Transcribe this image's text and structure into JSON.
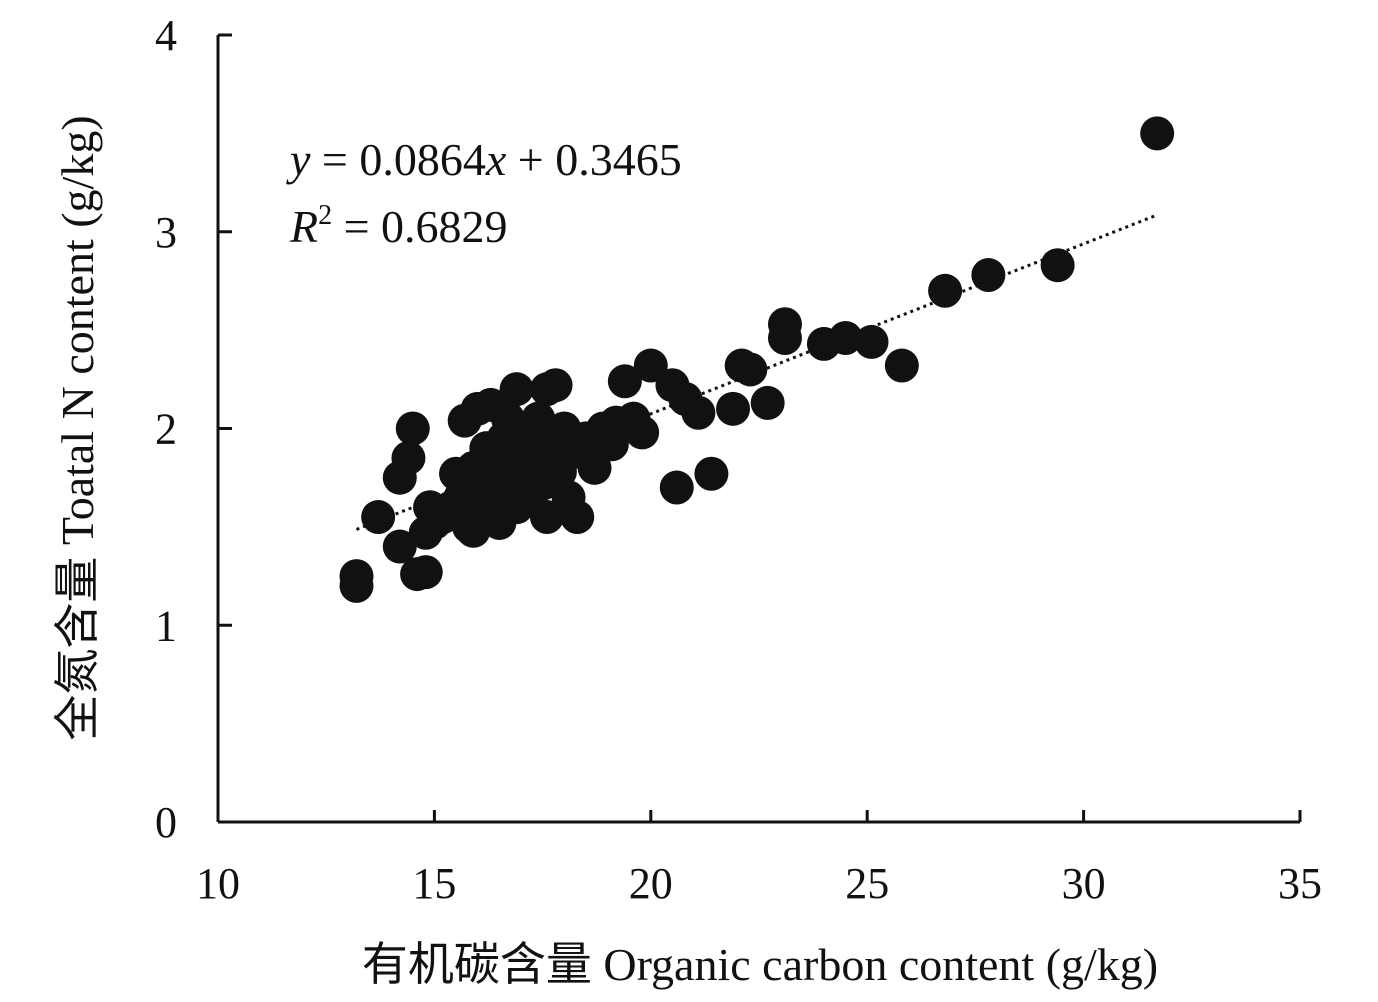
{
  "chart_data": {
    "type": "scatter",
    "xlabel": "有机碳含量 Organic carbon content (g/kg)",
    "ylabel": "全氮含量 Toatal N content (g/kg)",
    "xlim": [
      10,
      35
    ],
    "ylim": [
      0,
      4
    ],
    "xticks": [
      "10",
      "15",
      "20",
      "25",
      "30",
      "35"
    ],
    "yticks": [
      "0",
      "1",
      "2",
      "3",
      "4"
    ],
    "grid": false,
    "equation": {
      "y": "y",
      "eq1": " = 0.0864",
      "x": "x",
      "eq2": " + 0.3465",
      "r": "R",
      "sup": "2",
      "r2": " = 0.6829"
    },
    "trendline": {
      "slope": 0.0864,
      "intercept": 0.3465,
      "x_range": [
        13.2,
        31.7
      ],
      "style": "dotted"
    },
    "colors": {
      "points": "#111111",
      "axis": "#111111"
    },
    "points": [
      [
        13.2,
        1.25
      ],
      [
        13.2,
        1.2
      ],
      [
        13.7,
        1.55
      ],
      [
        14.2,
        1.4
      ],
      [
        14.2,
        1.75
      ],
      [
        14.4,
        1.85
      ],
      [
        14.5,
        2.0
      ],
      [
        14.6,
        1.26
      ],
      [
        14.8,
        1.27
      ],
      [
        14.8,
        1.47
      ],
      [
        14.9,
        1.6
      ],
      [
        15.0,
        1.52
      ],
      [
        15.2,
        1.55
      ],
      [
        15.4,
        1.6
      ],
      [
        15.5,
        1.77
      ],
      [
        15.6,
        1.65
      ],
      [
        15.7,
        2.04
      ],
      [
        15.8,
        1.5
      ],
      [
        15.9,
        1.48
      ],
      [
        15.9,
        1.8
      ],
      [
        16.0,
        2.1
      ],
      [
        16.1,
        1.7
      ],
      [
        16.2,
        1.58
      ],
      [
        16.2,
        1.9
      ],
      [
        16.3,
        2.12
      ],
      [
        16.4,
        1.75
      ],
      [
        16.5,
        1.52
      ],
      [
        16.5,
        1.65
      ],
      [
        16.6,
        1.95
      ],
      [
        16.7,
        2.05
      ],
      [
        16.7,
        1.82
      ],
      [
        16.8,
        1.7
      ],
      [
        16.9,
        2.2
      ],
      [
        16.9,
        1.6
      ],
      [
        17.0,
        1.9
      ],
      [
        17.0,
        1.75
      ],
      [
        17.2,
        1.68
      ],
      [
        17.2,
        1.98
      ],
      [
        17.3,
        1.85
      ],
      [
        17.4,
        2.05
      ],
      [
        17.5,
        1.72
      ],
      [
        17.6,
        2.2
      ],
      [
        17.6,
        1.55
      ],
      [
        17.7,
        1.92
      ],
      [
        17.8,
        2.22
      ],
      [
        17.9,
        1.78
      ],
      [
        18.0,
        2.0
      ],
      [
        18.1,
        1.65
      ],
      [
        18.2,
        1.88
      ],
      [
        18.3,
        1.55
      ],
      [
        18.5,
        1.95
      ],
      [
        18.7,
        1.8
      ],
      [
        18.9,
        2.0
      ],
      [
        19.1,
        1.92
      ],
      [
        19.2,
        2.03
      ],
      [
        19.4,
        2.24
      ],
      [
        19.6,
        2.05
      ],
      [
        19.8,
        1.98
      ],
      [
        20.0,
        2.32
      ],
      [
        20.5,
        2.22
      ],
      [
        20.6,
        1.7
      ],
      [
        20.8,
        2.15
      ],
      [
        21.1,
        2.08
      ],
      [
        21.4,
        1.77
      ],
      [
        21.9,
        2.1
      ],
      [
        22.1,
        2.32
      ],
      [
        22.3,
        2.3
      ],
      [
        22.7,
        2.13
      ],
      [
        23.1,
        2.46
      ],
      [
        23.1,
        2.53
      ],
      [
        24.0,
        2.43
      ],
      [
        24.5,
        2.46
      ],
      [
        25.1,
        2.44
      ],
      [
        25.8,
        2.32
      ],
      [
        26.8,
        2.7
      ],
      [
        27.8,
        2.78
      ],
      [
        29.4,
        2.83
      ],
      [
        31.7,
        3.5
      ]
    ]
  }
}
